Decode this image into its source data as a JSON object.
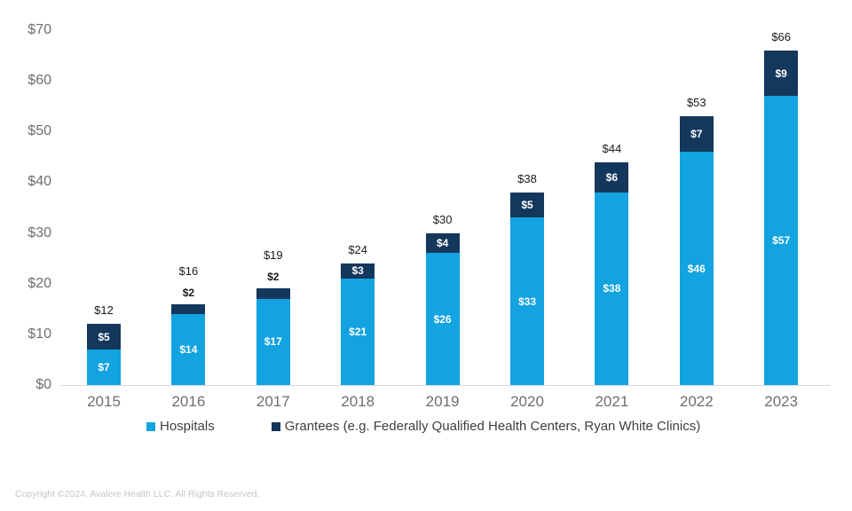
{
  "chart_data": {
    "type": "bar",
    "stacked": true,
    "categories": [
      "2015",
      "2016",
      "2017",
      "2018",
      "2019",
      "2020",
      "2021",
      "2022",
      "2023"
    ],
    "series": [
      {
        "name": "Hospitals",
        "color": "#12A3E0",
        "values": [
          7,
          14,
          17,
          21,
          26,
          33,
          38,
          46,
          57
        ]
      },
      {
        "name": "Grantees (e.g. Federally Qualified Health Centers, Ryan White Clinics)",
        "color": "#14375C",
        "values": [
          5,
          2,
          2,
          3,
          4,
          5,
          6,
          7,
          9
        ]
      }
    ],
    "totals": [
      12,
      16,
      19,
      24,
      30,
      38,
      44,
      53,
      66
    ],
    "grantees_label_position": [
      "inside",
      "outside",
      "outside",
      "inside",
      "inside",
      "inside",
      "inside",
      "inside",
      "inside"
    ],
    "value_prefix": "$",
    "ylim": [
      0,
      70
    ],
    "ytick_step": 10,
    "ytick_labels": [
      "$0",
      "$10",
      "$20",
      "$30",
      "$40",
      "$50",
      "$60",
      "$70"
    ],
    "grid": false,
    "legend_position": "bottom",
    "colors": {
      "axis_line": "#d9d9d9",
      "tick_label": "#6e6e6e",
      "total_label": "#1a1a1a",
      "inside_label": "#ffffff"
    }
  },
  "footer": {
    "copyright": "Copyright ©2024. Avalere Health LLC. All Rights Reserved."
  }
}
